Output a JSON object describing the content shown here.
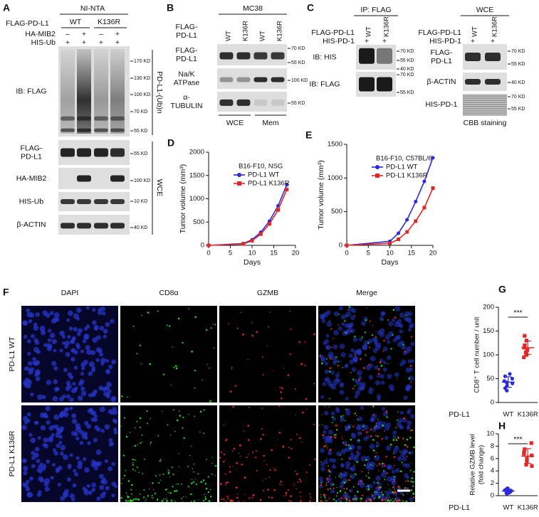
{
  "figure": {
    "A": {
      "label": "A",
      "header": "NI-NTA",
      "construct": "FLAG-PD-L1",
      "groups": [
        "WT",
        "K136R"
      ],
      "conditions": [
        {
          "name": "HA-MIB2",
          "signs": [
            "–",
            "+",
            "–",
            "+"
          ]
        },
        {
          "name": "HIS-Ub",
          "signs": [
            "+",
            "+",
            "+",
            "+"
          ]
        }
      ],
      "blots": [
        {
          "label": [
            "IB: FLAG"
          ],
          "markers": [
            "170 KD",
            "130 KD",
            "100 KD",
            "70 KD",
            "55 KD"
          ]
        },
        {
          "label": [
            "FLAG-",
            "PD-L1"
          ],
          "markers": [
            "55 KD"
          ]
        },
        {
          "label": [
            "HA-MIB2"
          ],
          "markers": [
            "100 KD"
          ]
        },
        {
          "label": [
            "HIS-Ub"
          ],
          "markers": [
            "10 KD"
          ]
        },
        {
          "label": [
            "β-ACTIN"
          ],
          "markers": [
            "40 KD"
          ]
        }
      ],
      "brackets": [
        "PD-L1-(Ub)n",
        "WCE"
      ]
    },
    "B": {
      "label": "B",
      "header": "MC38",
      "construct": [
        "FLAG-",
        "PD-L1"
      ],
      "lanes": [
        "WT",
        "K136R",
        "WT",
        "K136R"
      ],
      "blots": [
        {
          "label": [
            "FLAG-",
            "PD-L1"
          ],
          "markers": [
            "70 KD",
            "55 KD"
          ]
        },
        {
          "label": [
            "Na/K",
            "ATPase"
          ],
          "markers": [
            "100 KD"
          ]
        },
        {
          "label": [
            "α-",
            "TUBULIN"
          ],
          "markers": [
            "55 KD"
          ]
        }
      ],
      "fractions": [
        "WCE",
        "Mem"
      ]
    },
    "C": {
      "label": "C",
      "ip": {
        "header": "IP: FLAG",
        "rows": [
          "FLAG-PD-L1",
          "HIS-PD-1"
        ],
        "lanes": [
          "WT",
          "K136R"
        ],
        "signs": [
          "+",
          "+"
        ],
        "blots": [
          {
            "label": [
              "IB: HIS"
            ],
            "markers": [
              "70 KD",
              "55 KD",
              "40 KD"
            ]
          },
          {
            "label": [
              "IB: FLAG"
            ],
            "markers": [
              "70 KD",
              "55 KD"
            ]
          }
        ]
      },
      "wce": {
        "header": "WCE",
        "rows": [
          "FLAG-PD-L1",
          "HIS-PD-1"
        ],
        "lanes": [
          "WT",
          "K136R"
        ],
        "signs": [
          "+",
          "+"
        ],
        "blots": [
          {
            "label": [
              "FLAG-",
              "PD-L1"
            ],
            "markers": [
              "70 KD",
              "55 KD"
            ]
          },
          {
            "label": [
              "β-ACTIN"
            ],
            "markers": [
              "40 KD"
            ]
          },
          {
            "label": [
              "HIS-PD-1"
            ],
            "markers": [
              "70 KD",
              "55 KD"
            ]
          }
        ],
        "footer": "CBB staining"
      }
    },
    "F": {
      "label": "F",
      "channels": [
        "DAPI",
        "CD8α",
        "GZMB",
        "Merge"
      ],
      "rows": [
        "PD-L1 WT",
        "PD-L1 K136R"
      ]
    }
  },
  "chart_data": [
    {
      "type": "line",
      "panel": "D",
      "title": "B16-F10, NSG",
      "x_label": "Days",
      "y_label": "Tumor volume (mm³)",
      "x": [
        0,
        8,
        10,
        12,
        14,
        16,
        18
      ],
      "xlim": [
        0,
        20
      ],
      "xticks": [
        0,
        5,
        10,
        15,
        20
      ],
      "ylim": [
        0,
        2000
      ],
      "yticks": [
        0,
        500,
        1000,
        1500,
        2000
      ],
      "series": [
        {
          "name": "PD-L1 WT",
          "color": "#2b2bdb",
          "marker": "circle",
          "values": [
            0,
            40,
            120,
            280,
            520,
            850,
            1300
          ]
        },
        {
          "name": "PD-L1 K136R",
          "color": "#e32626",
          "marker": "square",
          "values": [
            0,
            30,
            100,
            240,
            460,
            760,
            1200
          ]
        }
      ]
    },
    {
      "type": "line",
      "panel": "E",
      "title": "B16-F10, C57BL/6",
      "x_label": "Days",
      "y_label": "Tumor volume (mm³)",
      "x": [
        0,
        10,
        12,
        14,
        16,
        18,
        20
      ],
      "xlim": [
        0,
        20
      ],
      "xticks": [
        0,
        5,
        10,
        15,
        20
      ],
      "ylim": [
        0,
        1500
      ],
      "yticks": [
        0,
        500,
        1000,
        1500
      ],
      "series": [
        {
          "name": "PD-L1 WT",
          "color": "#2b2bdb",
          "marker": "circle",
          "values": [
            0,
            60,
            180,
            380,
            650,
            950,
            1300
          ]
        },
        {
          "name": "PD-L1 K136R",
          "color": "#e32626",
          "marker": "square",
          "values": [
            0,
            30,
            90,
            200,
            360,
            560,
            850
          ]
        }
      ]
    },
    {
      "type": "dot",
      "panel": "G",
      "y_label": [
        "CD8⁺ T cell number / unit"
      ],
      "group_label": "PD-L1",
      "categories": [
        "WT",
        "K136R"
      ],
      "colors": [
        "#2b2bdb",
        "#e32626"
      ],
      "markers": [
        "circle",
        "square"
      ],
      "points": [
        [
          45,
          30,
          55,
          40,
          60,
          35,
          25,
          50,
          42
        ],
        [
          115,
          95,
          130,
          100,
          140,
          110,
          120,
          105
        ]
      ],
      "means": [
        43,
        115
      ],
      "sd": [
        11,
        14
      ],
      "significance": "***",
      "ylim": [
        0,
        200
      ],
      "yticks": [
        0,
        50,
        100,
        150,
        200
      ]
    },
    {
      "type": "dot",
      "panel": "H",
      "y_label": [
        "Relative GZMB level",
        "(fold change)"
      ],
      "group_label": "PD-L1",
      "categories": [
        "WT",
        "K136R"
      ],
      "colors": [
        "#2b2bdb",
        "#e32626"
      ],
      "markers": [
        "circle",
        "square"
      ],
      "points": [
        [
          0.5,
          0.8,
          1.0,
          0.3,
          1.2,
          0.6,
          0.9,
          0.4,
          1.1,
          0.7
        ],
        [
          6.5,
          5.5,
          7.5,
          8.5,
          6.0,
          7.0,
          5.0,
          6.8,
          4.8
        ]
      ],
      "means": [
        0.75,
        6.4
      ],
      "sd": [
        0.3,
        1.2
      ],
      "significance": "***",
      "ylim": [
        0,
        10
      ],
      "yticks": [
        0,
        2,
        4,
        6,
        8,
        10
      ]
    }
  ]
}
